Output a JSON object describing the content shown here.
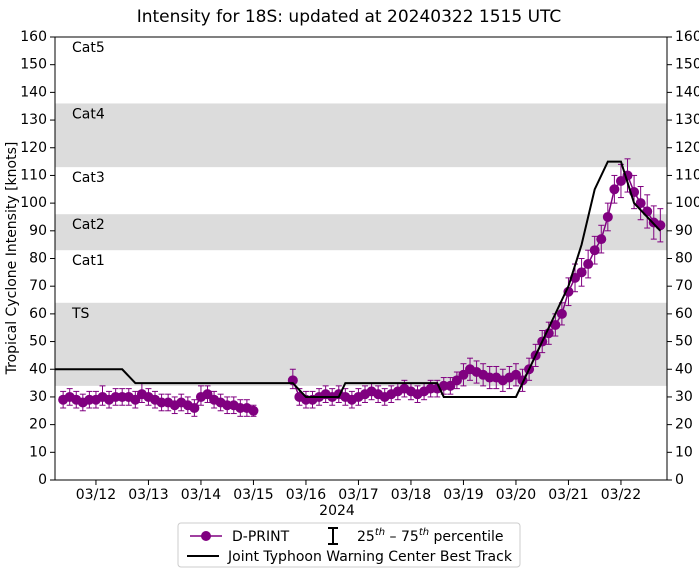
{
  "chart_data": {
    "type": "line",
    "title": "Intensity for 18S: updated at 20240322 1515 UTC",
    "xlabel": "2024",
    "ylabel": "Tropical Cyclone Intensity [knots]",
    "xlim": [
      11.22,
      22.877
    ],
    "xticks": [
      {
        "value": 12,
        "label": "03/12"
      },
      {
        "value": 13,
        "label": "03/13"
      },
      {
        "value": 14,
        "label": "03/14"
      },
      {
        "value": 15,
        "label": "03/15"
      },
      {
        "value": 16,
        "label": "03/16"
      },
      {
        "value": 17,
        "label": "03/17"
      },
      {
        "value": 18,
        "label": "03/18"
      },
      {
        "value": 19,
        "label": "03/19"
      },
      {
        "value": 20,
        "label": "03/20"
      },
      {
        "value": 21,
        "label": "03/21"
      },
      {
        "value": 22,
        "label": "03/22"
      }
    ],
    "ylim": [
      0,
      160
    ],
    "yticks": [
      0,
      10,
      20,
      30,
      40,
      50,
      60,
      70,
      80,
      90,
      100,
      110,
      120,
      130,
      140,
      150,
      160
    ],
    "bands": [
      {
        "label": "TS",
        "from": 34,
        "shaded": true
      },
      {
        "label": "Cat1",
        "from": 64,
        "shaded": false
      },
      {
        "label": "Cat2",
        "from": 83,
        "shaded": true
      },
      {
        "label": "Cat3",
        "from": 96,
        "shaded": false
      },
      {
        "label": "Cat4",
        "from": 113,
        "shaded": true
      },
      {
        "label": "Cat5",
        "from": 136,
        "shaded": false
      }
    ],
    "band_color": "#dcdcdc",
    "percentile_label_parts": [
      "25",
      "th",
      " – 75",
      "th",
      " percentile"
    ],
    "series": [
      {
        "name": "D-PRINT",
        "color": "#800080",
        "marker": true,
        "x": [
          11.375,
          11.5,
          11.625,
          11.75,
          11.875,
          12,
          12.125,
          12.25,
          12.375,
          12.5,
          12.625,
          12.75,
          12.875,
          13,
          13.125,
          13.25,
          13.375,
          13.5,
          13.625,
          13.75,
          13.875,
          14,
          14.125,
          14.25,
          14.375,
          14.5,
          14.625,
          14.75,
          14.875,
          15,
          15.375,
          15.75,
          15.875,
          16,
          16.125,
          16.25,
          16.375,
          16.5,
          16.625,
          16.75,
          16.875,
          17,
          17.125,
          17.25,
          17.375,
          17.5,
          17.625,
          17.75,
          17.875,
          18,
          18.125,
          18.25,
          18.375,
          18.5,
          18.625,
          18.75,
          18.875,
          19,
          19.125,
          19.25,
          19.375,
          19.5,
          19.625,
          19.75,
          19.875,
          20,
          20.125,
          20.25,
          20.375,
          20.5,
          20.625,
          20.75,
          20.875,
          21,
          21.125,
          21.25,
          21.375,
          21.5,
          21.625,
          21.75,
          21.875,
          22,
          22.125,
          22.25,
          22.375,
          22.5,
          22.625,
          22.75
        ],
        "values": [
          29,
          30,
          29,
          28,
          29,
          29,
          30,
          29,
          30,
          30,
          30,
          29,
          31,
          30,
          29,
          28,
          28,
          27,
          28,
          27,
          26,
          30,
          31,
          29,
          28,
          27,
          27,
          26,
          26,
          25,
          null,
          36,
          30,
          29,
          29,
          30,
          31,
          30,
          31,
          30,
          29,
          30,
          31,
          32,
          31,
          30,
          31,
          32,
          33,
          32,
          31,
          32,
          33,
          33,
          34,
          34,
          36,
          38,
          40,
          39,
          38,
          37,
          37,
          36,
          37,
          38,
          36,
          40,
          45,
          50,
          53,
          56,
          60,
          68,
          73,
          75,
          78,
          83,
          87,
          95,
          105,
          108,
          110,
          104,
          100,
          97,
          93,
          92
        ],
        "p25": [
          26,
          27,
          26,
          25,
          26,
          26,
          27,
          26,
          27,
          27,
          27,
          26,
          28,
          27,
          26,
          25,
          25,
          24,
          25,
          24,
          23,
          27,
          28,
          26,
          25,
          24,
          24,
          23,
          23,
          23,
          null,
          33,
          27,
          26,
          26,
          27,
          28,
          27,
          28,
          27,
          26,
          27,
          28,
          29,
          28,
          27,
          28,
          29,
          30,
          29,
          28,
          29,
          30,
          30,
          31,
          31,
          33,
          34,
          36,
          35,
          34,
          33,
          33,
          32,
          33,
          34,
          32,
          36,
          41,
          46,
          49,
          52,
          56,
          63,
          68,
          70,
          73,
          78,
          82,
          90,
          100,
          102,
          104,
          98,
          94,
          91,
          87,
          86
        ],
        "p75": [
          32,
          33,
          32,
          31,
          32,
          32,
          34,
          32,
          33,
          33,
          33,
          32,
          35,
          33,
          32,
          31,
          31,
          30,
          31,
          30,
          29,
          34,
          34,
          32,
          31,
          30,
          30,
          29,
          29,
          27,
          null,
          40,
          33,
          32,
          32,
          33,
          34,
          33,
          34,
          33,
          32,
          33,
          34,
          35,
          34,
          33,
          34,
          35,
          36,
          35,
          34,
          35,
          36,
          36,
          37,
          37,
          39,
          42,
          44,
          43,
          42,
          41,
          41,
          40,
          41,
          42,
          40,
          44,
          49,
          54,
          57,
          60,
          64,
          73,
          78,
          80,
          83,
          88,
          92,
          100,
          110,
          114,
          116,
          110,
          106,
          103,
          99,
          98
        ]
      },
      {
        "name": "Joint Typhoon Warning Center Best Track",
        "color": "#000000",
        "marker": false,
        "x": [
          11.22,
          12.5,
          12.75,
          15.75,
          16,
          16.625,
          16.75,
          18.5,
          18.625,
          20,
          20.25,
          20.5,
          20.75,
          21,
          21.25,
          21.5,
          21.75,
          22,
          22.25,
          22.5,
          22.75
        ],
        "values": [
          40,
          40,
          35,
          35,
          30,
          30,
          35,
          35,
          30,
          30,
          40,
          50,
          60,
          70,
          85,
          105,
          115,
          115,
          100,
          95,
          90
        ]
      }
    ]
  }
}
